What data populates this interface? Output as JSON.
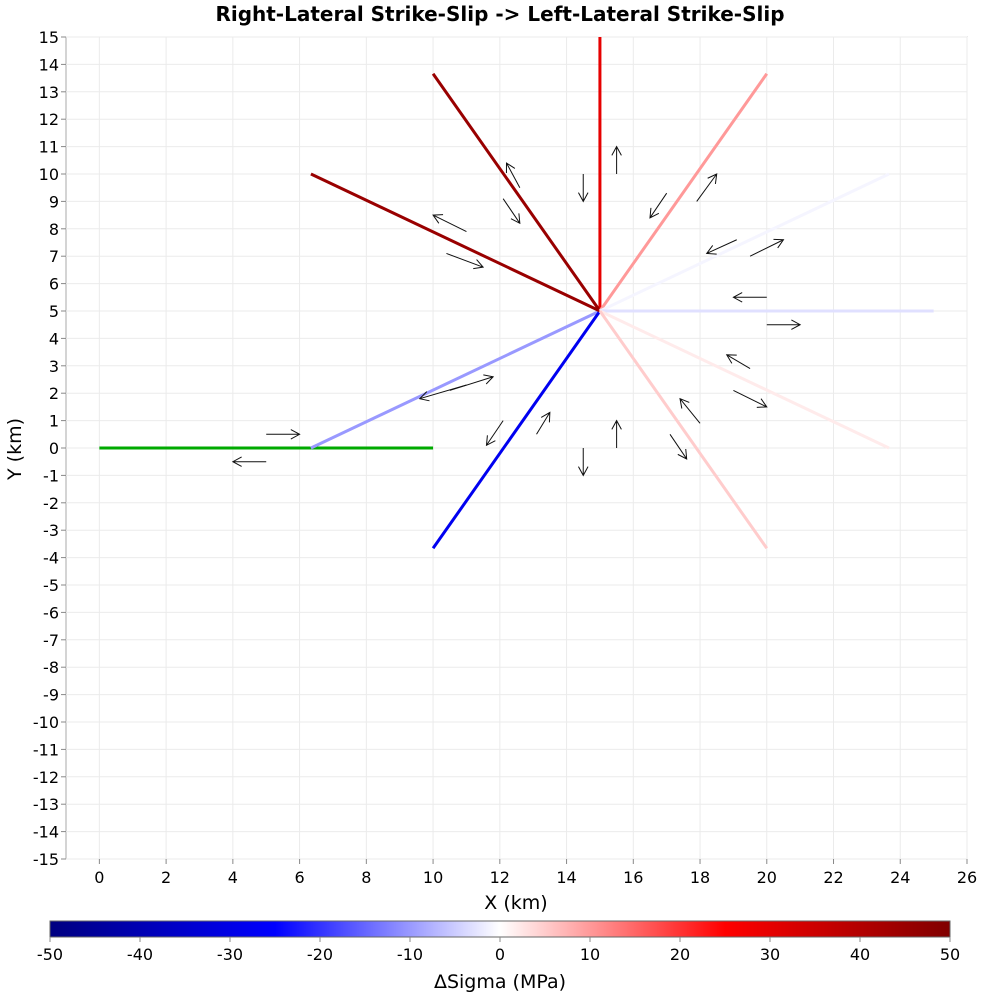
{
  "chart_data": {
    "type": "line",
    "title": "Right-Lateral Strike-Slip -> Left-Lateral Strike-Slip",
    "xlabel": "X (km)",
    "ylabel": "Y (km)",
    "xlim": [
      -1,
      26
    ],
    "ylim": [
      -15,
      15
    ],
    "xticks": [
      0,
      2,
      4,
      6,
      8,
      10,
      12,
      14,
      16,
      18,
      20,
      22,
      24,
      26
    ],
    "yticks": [
      -15,
      -14,
      -13,
      -12,
      -11,
      -10,
      -9,
      -8,
      -7,
      -6,
      -5,
      -4,
      -3,
      -2,
      -1,
      0,
      1,
      2,
      3,
      4,
      5,
      6,
      7,
      8,
      9,
      10,
      11,
      12,
      13,
      14,
      15
    ],
    "grid": true,
    "source_fault": {
      "x": [
        0,
        10
      ],
      "y": [
        0,
        0
      ],
      "color": "#00aa00",
      "arrows": [
        {
          "x": [
            5,
            6
          ],
          "y": [
            0.5,
            0.5
          ]
        },
        {
          "x": [
            5,
            4
          ],
          "y": [
            -0.5,
            -0.5
          ]
        }
      ]
    },
    "receiver_faults": [
      {
        "x": [
          6.34,
          15
        ],
        "y": [
          0,
          5
        ],
        "delta_sigma": -10,
        "arrows": [
          {
            "x": [
              10.5,
              11.8
            ],
            "y": [
              2.1,
              2.6
            ]
          },
          {
            "x": [
              11,
              9.6
            ],
            "y": [
              2.3,
              1.8
            ]
          }
        ]
      },
      {
        "x": [
          15,
          10
        ],
        "y": [
          5,
          -3.66
        ],
        "delta_sigma": -28,
        "arrows": [
          {
            "x": [
              13.1,
              13.5
            ],
            "y": [
              0.5,
              1.3
            ]
          },
          {
            "x": [
              12.1,
              11.6
            ],
            "y": [
              1.0,
              0.1
            ]
          }
        ]
      },
      {
        "x": [
          15,
          15
        ],
        "y": [
          5,
          15
        ],
        "delta_sigma": 30,
        "arrows": [
          {
            "x": [
              15.5,
              15.5
            ],
            "y": [
              10,
              11
            ]
          },
          {
            "x": [
              14.5,
              14.5
            ],
            "y": [
              10,
              9
            ]
          }
        ]
      },
      {
        "x": [
          15,
          10
        ],
        "y": [
          5,
          13.66
        ],
        "delta_sigma": 45,
        "arrows": [
          {
            "x": [
              12.6,
              12.2
            ],
            "y": [
              9.5,
              10.4
            ]
          },
          {
            "x": [
              12.1,
              12.6
            ],
            "y": [
              9.1,
              8.2
            ]
          }
        ]
      },
      {
        "x": [
          15,
          6.34
        ],
        "y": [
          5,
          10
        ],
        "delta_sigma": 45,
        "arrows": [
          {
            "x": [
              11,
              10
            ],
            "y": [
              7.9,
              8.5
            ]
          },
          {
            "x": [
              10.4,
              11.5
            ],
            "y": [
              7.1,
              6.6
            ]
          }
        ]
      },
      {
        "x": [
          15,
          20
        ],
        "y": [
          5,
          13.66
        ],
        "delta_sigma": 10,
        "arrows": [
          {
            "x": [
              17,
              16.5
            ],
            "y": [
              9.3,
              8.4
            ]
          },
          {
            "x": [
              17.9,
              18.5
            ],
            "y": [
              9.0,
              10.0
            ]
          }
        ]
      },
      {
        "x": [
          15,
          23.66
        ],
        "y": [
          5,
          10
        ],
        "delta_sigma": -1,
        "arrows": [
          {
            "x": [
              19.1,
              18.2
            ],
            "y": [
              7.6,
              7.1
            ]
          },
          {
            "x": [
              19.5,
              20.5
            ],
            "y": [
              7.0,
              7.6
            ]
          }
        ]
      },
      {
        "x": [
          15,
          25
        ],
        "y": [
          5,
          5
        ],
        "delta_sigma": -3,
        "arrows": [
          {
            "x": [
              20,
              19
            ],
            "y": [
              5.5,
              5.5
            ]
          },
          {
            "x": [
              20,
              21
            ],
            "y": [
              4.5,
              4.5
            ]
          }
        ]
      },
      {
        "x": [
          15,
          23.66
        ],
        "y": [
          5,
          0
        ],
        "delta_sigma": 2,
        "arrows": [
          {
            "x": [
              19.5,
              18.8
            ],
            "y": [
              2.9,
              3.4
            ]
          },
          {
            "x": [
              19,
              20
            ],
            "y": [
              2.1,
              1.5
            ]
          }
        ]
      },
      {
        "x": [
          15,
          20
        ],
        "y": [
          5,
          -3.66
        ],
        "delta_sigma": 5,
        "arrows": [
          {
            "x": [
              18,
              17.4
            ],
            "y": [
              0.9,
              1.8
            ]
          },
          {
            "x": [
              17.1,
              17.6
            ],
            "y": [
              0.5,
              -0.4
            ]
          }
        ]
      }
    ],
    "center_arrows": [
      {
        "x": [
          15.5,
          15.5
        ],
        "y": [
          0,
          1
        ]
      },
      {
        "x": [
          14.5,
          14.5
        ],
        "y": [
          0,
          -1
        ]
      }
    ],
    "colorbar": {
      "label": "ΔSigma (MPa)",
      "range": [
        -50,
        50
      ],
      "ticks": [
        -50,
        -40,
        -30,
        -20,
        -10,
        0,
        10,
        20,
        30,
        40,
        50
      ],
      "stops": [
        {
          "value": -50,
          "color": "#000080"
        },
        {
          "value": -25,
          "color": "#0000ff"
        },
        {
          "value": 0,
          "color": "#ffffff"
        },
        {
          "value": 25,
          "color": "#ff0000"
        },
        {
          "value": 50,
          "color": "#800000"
        }
      ]
    }
  }
}
